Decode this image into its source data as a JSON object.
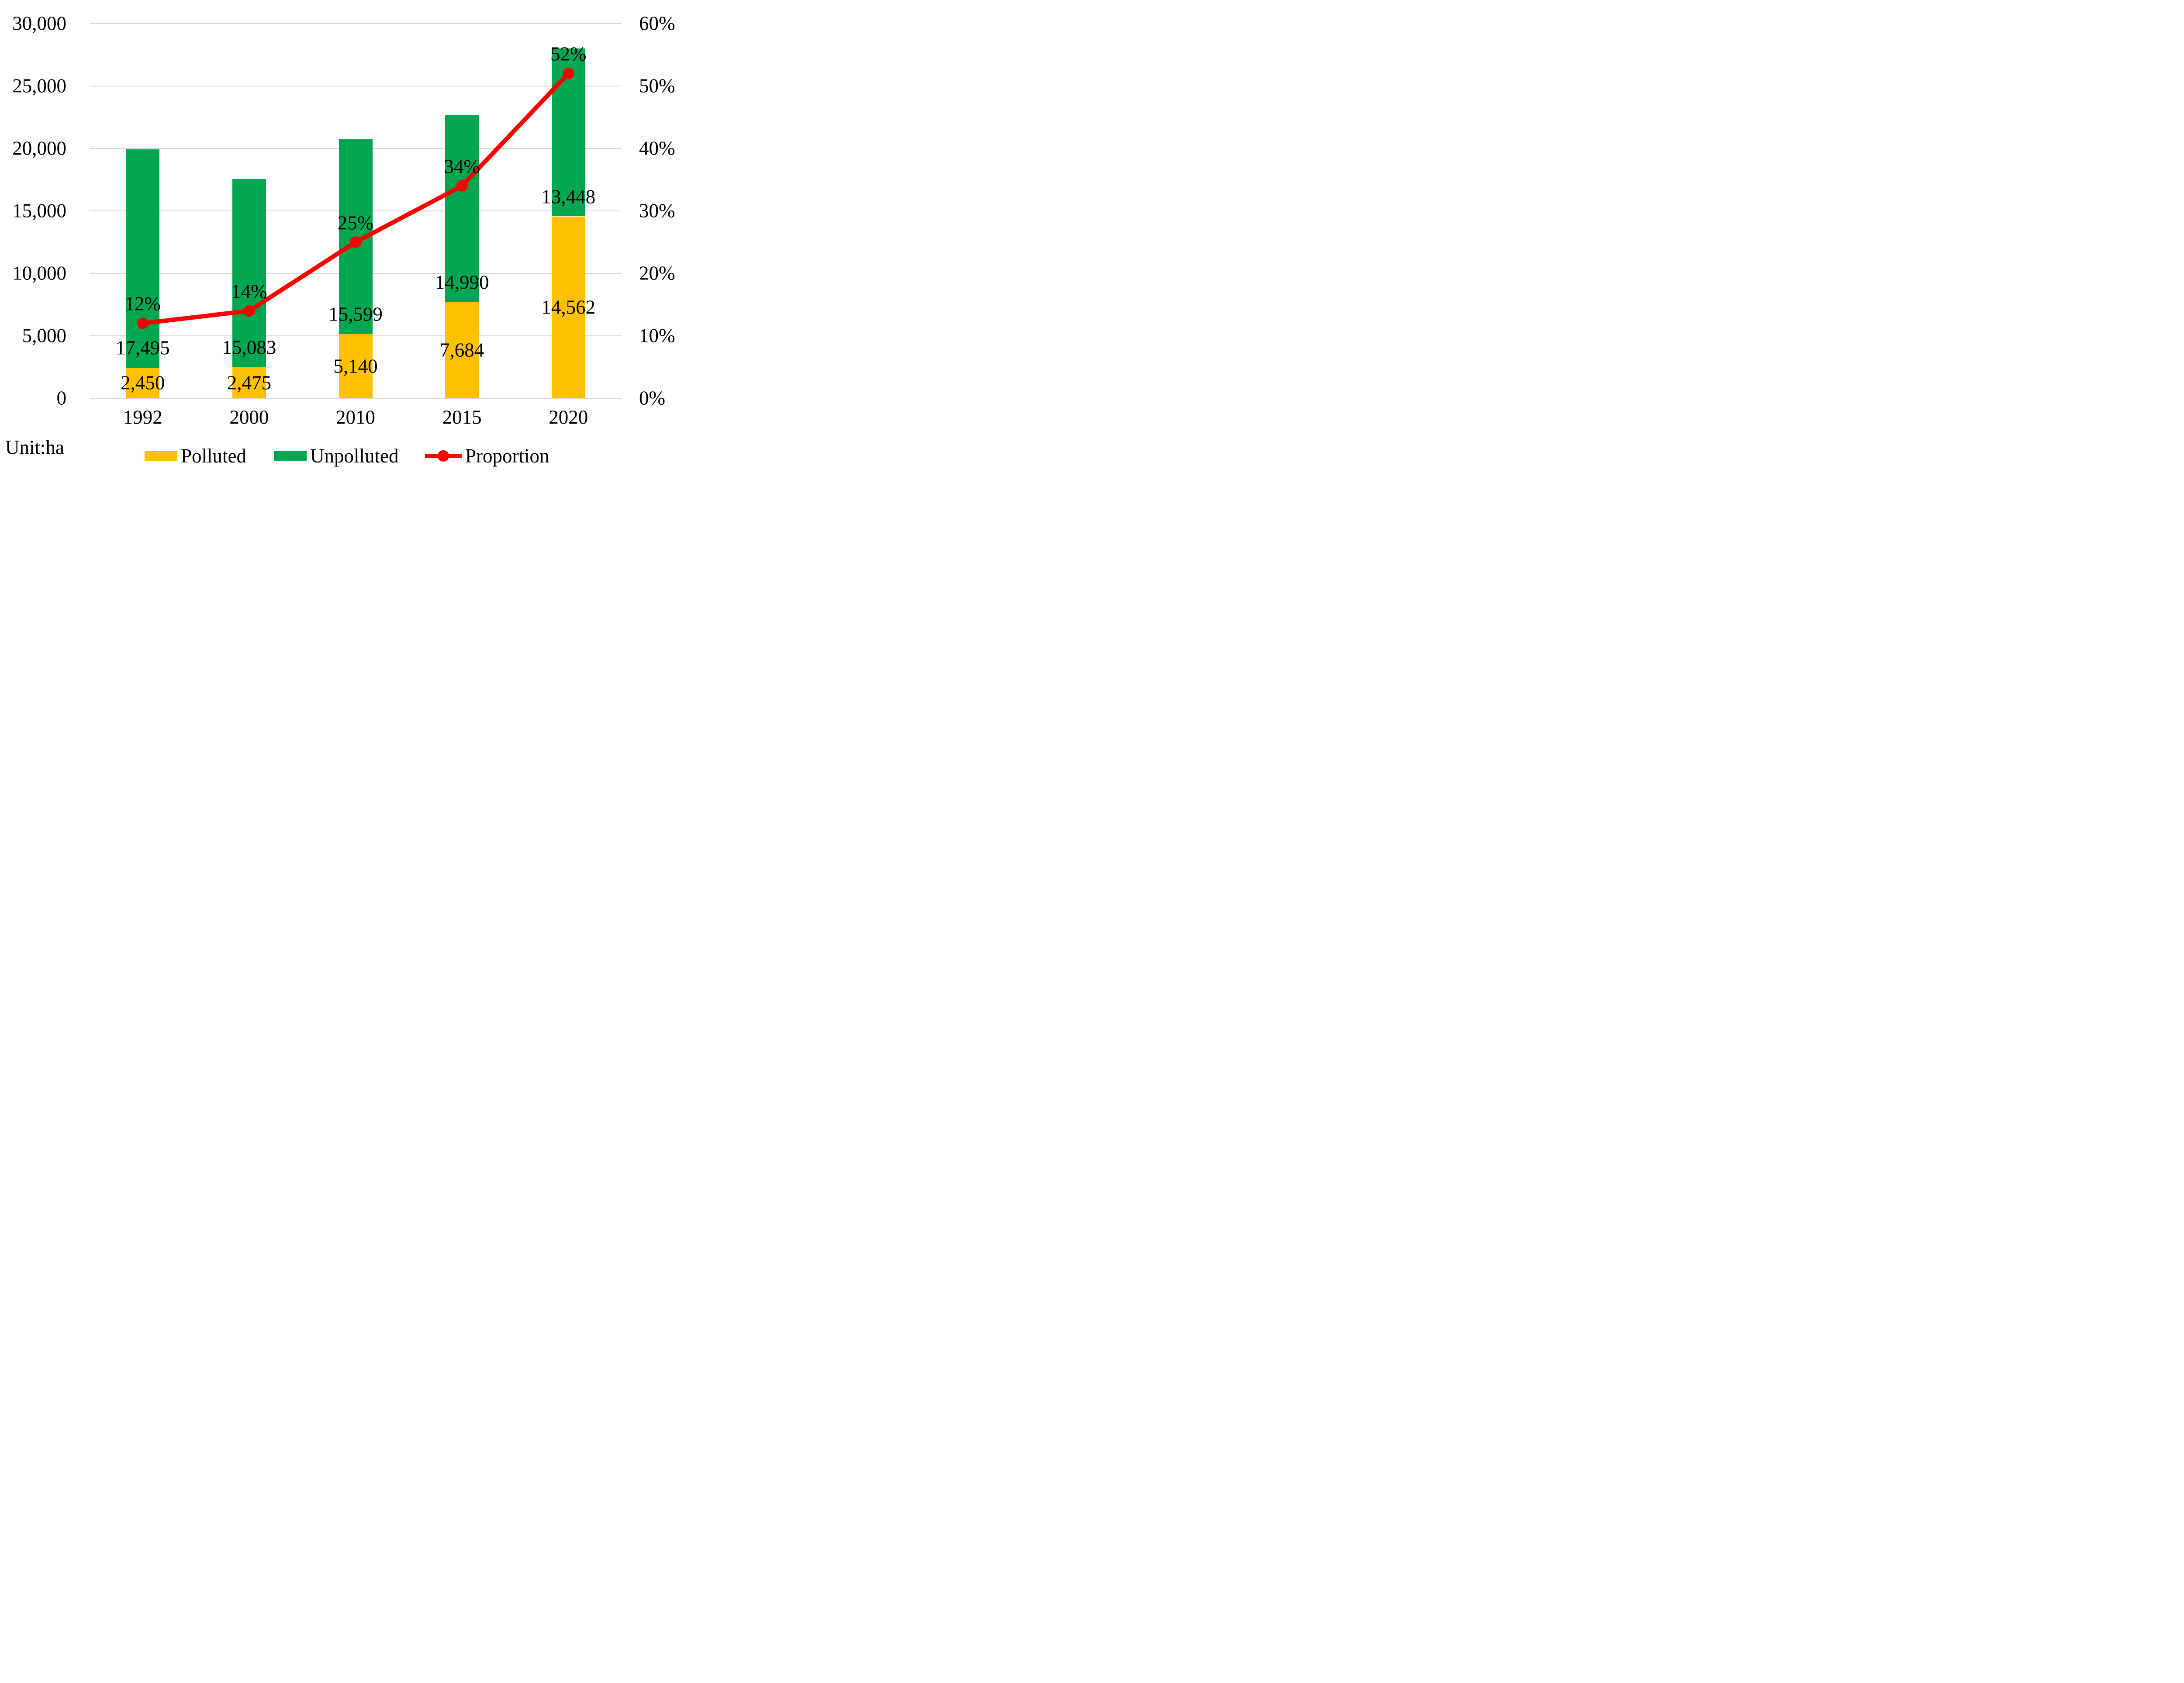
{
  "chart_data": {
    "type": "combo: stacked-bar + line",
    "categories": [
      "1992",
      "2000",
      "2010",
      "2015",
      "2020"
    ],
    "series": [
      {
        "name": "Polluted",
        "type": "bar",
        "stack_position": "bottom",
        "color": "#FFC000",
        "values": [
          2450,
          2475,
          5140,
          7684,
          14562
        ],
        "labels": [
          "2,450",
          "2,475",
          "5,140",
          "7,684",
          "14,562"
        ]
      },
      {
        "name": "Unpolluted",
        "type": "bar",
        "stack_position": "top",
        "color": "#00A750",
        "values": [
          17495,
          15083,
          15599,
          14990,
          13448
        ],
        "labels": [
          "17,495",
          "15,083",
          "15,599",
          "14,990",
          "13,448"
        ]
      },
      {
        "name": "Proportion",
        "type": "line",
        "axis": "right",
        "color": "#FE0000",
        "marker": "circle",
        "values": [
          12,
          14,
          25,
          34,
          52
        ],
        "labels": [
          "12%",
          "14%",
          "25%",
          "34%",
          "52%"
        ]
      }
    ],
    "left_axis": {
      "min": 0,
      "max": 30000,
      "step": 5000,
      "tick_labels_bottom_to_top": [
        "0",
        "5,000",
        "10,000",
        "15,000",
        "20,000",
        "25,000",
        "30,000"
      ]
    },
    "right_axis": {
      "min": 0,
      "max": 60,
      "step": 10,
      "tick_labels_bottom_to_top": [
        "0%",
        "10%",
        "20%",
        "30%",
        "40%",
        "50%",
        "60%"
      ]
    },
    "unit_note": "Unit:ha",
    "grid": true,
    "gridline_color": "#D8D8D8",
    "background": "#FFFFFF",
    "text_color": "#000000",
    "legend": {
      "position": "bottom",
      "items": [
        "Polluted",
        "Unpolluted",
        "Proportion"
      ]
    }
  }
}
